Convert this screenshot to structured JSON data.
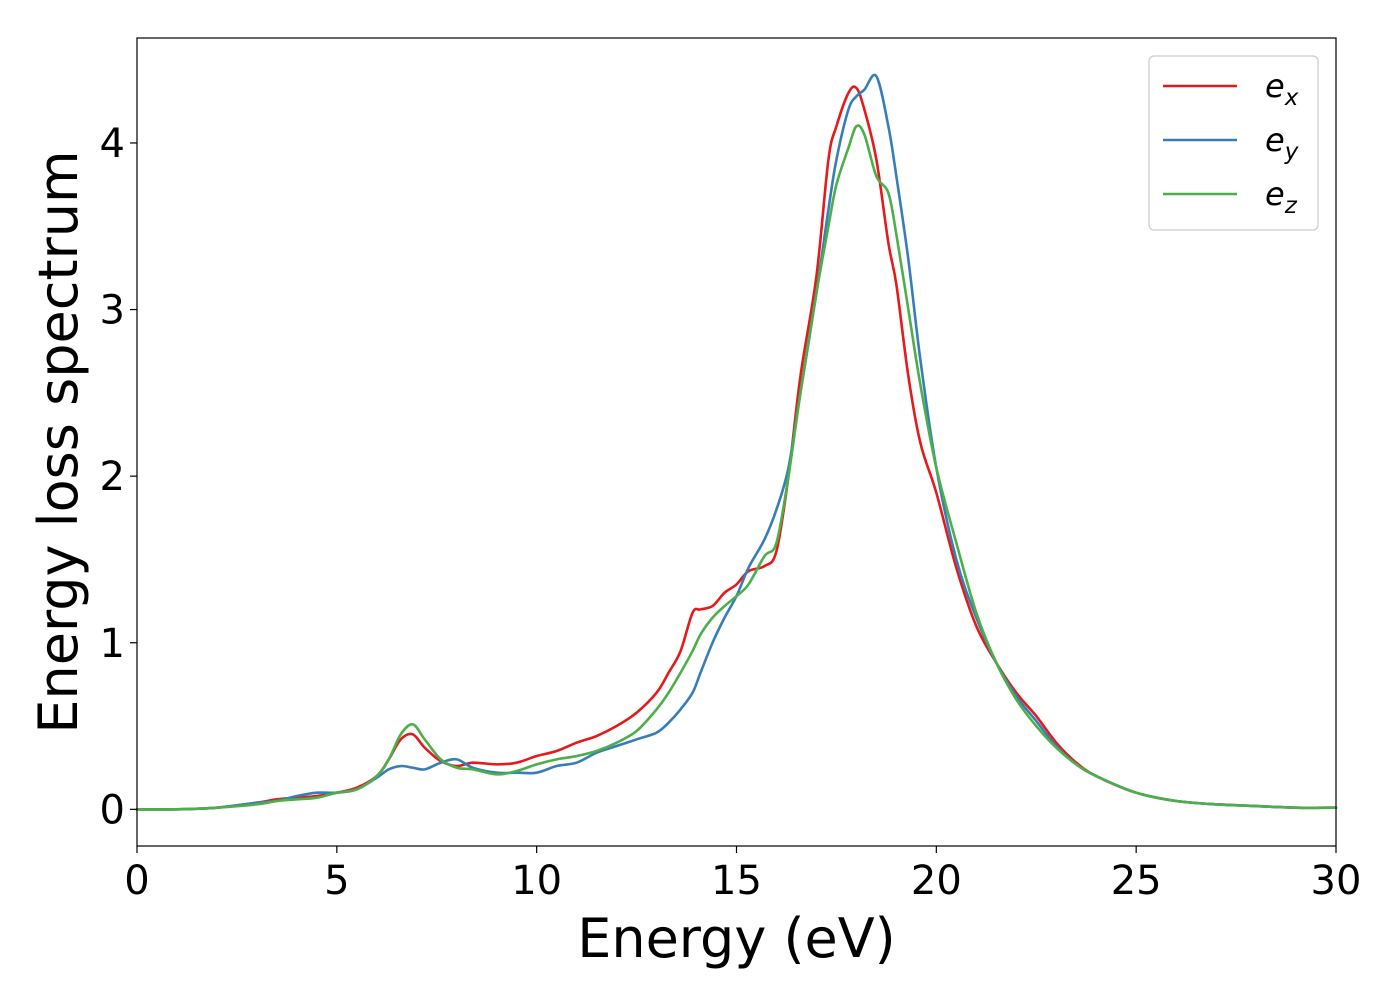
{
  "chart_data": {
    "type": "line",
    "xlabel": "Energy (eV)",
    "ylabel": "Energy loss spectrum",
    "xlim": [
      0,
      30
    ],
    "ylim": [
      -0.22,
      4.63
    ],
    "xticks": [
      0,
      5,
      10,
      15,
      20,
      25,
      30
    ],
    "yticks": [
      0,
      1,
      2,
      3,
      4
    ],
    "xtick_labels": [
      "0",
      "5",
      "10",
      "15",
      "20",
      "25",
      "30"
    ],
    "ytick_labels": [
      "0",
      "1",
      "2",
      "3",
      "4"
    ],
    "grid": false,
    "legend_position": "top-right",
    "series": [
      {
        "name": "e_x",
        "name_main": "e",
        "name_sub": "x",
        "color": "#e41a1c",
        "x": [
          0,
          1,
          2,
          3,
          3.5,
          4,
          4.5,
          5,
          5.5,
          6,
          6.3,
          6.6,
          6.9,
          7.2,
          7.6,
          8,
          8.4,
          9,
          9.5,
          10,
          10.5,
          11,
          11.5,
          12,
          12.5,
          13,
          13.3,
          13.6,
          13.9,
          14.1,
          14.4,
          14.7,
          15,
          15.3,
          15.7,
          16,
          16.3,
          16.6,
          17,
          17.3,
          17.5,
          17.8,
          18,
          18.2,
          18.5,
          18.8,
          19,
          19.3,
          19.6,
          20,
          20.5,
          21,
          21.5,
          22,
          22.5,
          23,
          23.5,
          24,
          25,
          26,
          27,
          28,
          29,
          30
        ],
        "y": [
          0,
          0,
          0.01,
          0.04,
          0.06,
          0.07,
          0.08,
          0.1,
          0.13,
          0.2,
          0.3,
          0.42,
          0.45,
          0.37,
          0.29,
          0.26,
          0.28,
          0.27,
          0.28,
          0.32,
          0.35,
          0.4,
          0.44,
          0.5,
          0.58,
          0.7,
          0.82,
          0.95,
          1.18,
          1.2,
          1.22,
          1.3,
          1.35,
          1.43,
          1.46,
          1.55,
          2.0,
          2.6,
          3.2,
          3.9,
          4.1,
          4.3,
          4.33,
          4.2,
          3.9,
          3.4,
          3.15,
          2.6,
          2.2,
          1.9,
          1.45,
          1.1,
          0.88,
          0.7,
          0.56,
          0.4,
          0.28,
          0.2,
          0.1,
          0.05,
          0.03,
          0.02,
          0.01,
          0.01
        ]
      },
      {
        "name": "e_y",
        "name_main": "e",
        "name_sub": "y",
        "color": "#377eb8",
        "x": [
          0,
          1,
          2,
          3,
          3.5,
          4,
          4.5,
          5,
          5.5,
          6,
          6.3,
          6.6,
          6.9,
          7.2,
          7.6,
          8,
          8.4,
          9,
          9.5,
          10,
          10.5,
          11,
          11.5,
          12,
          12.5,
          13,
          13.3,
          13.6,
          13.9,
          14.1,
          14.4,
          14.7,
          15,
          15.3,
          15.7,
          16,
          16.3,
          16.6,
          17,
          17.3,
          17.5,
          17.8,
          18,
          18.2,
          18.5,
          18.8,
          19,
          19.3,
          19.6,
          20,
          20.5,
          21,
          21.5,
          22,
          22.5,
          23,
          23.5,
          24,
          25,
          26,
          27,
          28,
          29,
          30
        ],
        "y": [
          0,
          0,
          0.01,
          0.04,
          0.05,
          0.08,
          0.1,
          0.1,
          0.12,
          0.19,
          0.24,
          0.26,
          0.25,
          0.24,
          0.28,
          0.3,
          0.25,
          0.22,
          0.22,
          0.22,
          0.26,
          0.28,
          0.34,
          0.38,
          0.42,
          0.46,
          0.52,
          0.6,
          0.7,
          0.82,
          1.0,
          1.15,
          1.28,
          1.45,
          1.62,
          1.8,
          2.05,
          2.5,
          3.1,
          3.6,
          3.9,
          4.2,
          4.28,
          4.32,
          4.4,
          4.1,
          3.8,
          3.3,
          2.7,
          2.05,
          1.5,
          1.15,
          0.88,
          0.68,
          0.53,
          0.38,
          0.27,
          0.2,
          0.1,
          0.05,
          0.03,
          0.02,
          0.01,
          0.01
        ]
      },
      {
        "name": "e_z",
        "name_main": "e",
        "name_sub": "z",
        "color": "#4daf4a",
        "x": [
          0,
          1,
          2,
          3,
          3.5,
          4,
          4.5,
          5,
          5.5,
          6,
          6.3,
          6.6,
          6.9,
          7.2,
          7.6,
          8,
          8.4,
          9,
          9.5,
          10,
          10.5,
          11,
          11.5,
          12,
          12.5,
          13,
          13.3,
          13.6,
          13.9,
          14.1,
          14.4,
          14.7,
          15,
          15.3,
          15.7,
          16,
          16.3,
          16.6,
          17,
          17.3,
          17.5,
          17.8,
          18,
          18.2,
          18.5,
          18.8,
          19,
          19.3,
          19.6,
          20,
          20.5,
          21,
          21.5,
          22,
          22.5,
          23,
          23.5,
          24,
          25,
          26,
          27,
          28,
          29,
          30
        ],
        "y": [
          0,
          0,
          0.01,
          0.03,
          0.05,
          0.06,
          0.07,
          0.1,
          0.12,
          0.2,
          0.3,
          0.45,
          0.51,
          0.42,
          0.3,
          0.25,
          0.24,
          0.21,
          0.23,
          0.27,
          0.3,
          0.32,
          0.35,
          0.4,
          0.47,
          0.6,
          0.7,
          0.82,
          0.95,
          1.05,
          1.15,
          1.22,
          1.28,
          1.35,
          1.52,
          1.6,
          2.0,
          2.5,
          3.1,
          3.5,
          3.75,
          3.97,
          4.1,
          4.05,
          3.8,
          3.7,
          3.45,
          3.0,
          2.55,
          2.05,
          1.6,
          1.18,
          0.88,
          0.66,
          0.5,
          0.37,
          0.27,
          0.2,
          0.1,
          0.05,
          0.03,
          0.02,
          0.01,
          0.01
        ]
      }
    ]
  }
}
